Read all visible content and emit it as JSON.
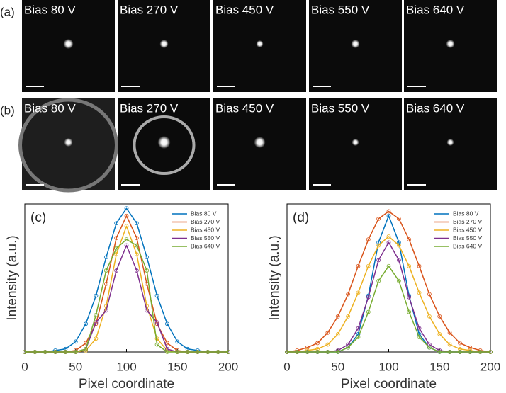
{
  "panels": [
    {
      "label": "(a)",
      "images": [
        "Bias 80 V",
        "Bias 270 V",
        "Bias 450 V",
        "Bias 550 V",
        "Bias 640 V"
      ]
    },
    {
      "label": "(b)",
      "images": [
        "Bias 80 V",
        "Bias 270 V",
        "Bias 450 V",
        "Bias 550 V",
        "Bias 640 V"
      ]
    }
  ],
  "chart_data": [
    {
      "type": "line",
      "panel_label": "(c)",
      "xlabel": "Pixel coordinate",
      "ylabel": "Intensity (a.u.)",
      "x": [
        0,
        10,
        20,
        30,
        40,
        50,
        60,
        70,
        80,
        90,
        100,
        110,
        120,
        130,
        140,
        150,
        160,
        170,
        180,
        190,
        200
      ],
      "xlim": [
        0,
        200
      ],
      "xticks": [
        0,
        50,
        100,
        150,
        200
      ],
      "ylim": [
        0,
        1
      ],
      "legend": "upper right",
      "series": [
        {
          "name": "Bias 80 V",
          "color": "#0072bd",
          "values": [
            0,
            0,
            0,
            0.01,
            0.02,
            0.07,
            0.19,
            0.38,
            0.64,
            0.87,
            0.97,
            0.87,
            0.64,
            0.38,
            0.19,
            0.07,
            0.02,
            0.01,
            0,
            0,
            0
          ]
        },
        {
          "name": "Bias 270 V",
          "color": "#d95319",
          "values": [
            0,
            0,
            0,
            0,
            0,
            0.01,
            0.06,
            0.19,
            0.46,
            0.77,
            0.92,
            0.77,
            0.46,
            0.19,
            0.06,
            0.01,
            0,
            0,
            0,
            0,
            0
          ]
        },
        {
          "name": "Bias 450 V",
          "color": "#edb120",
          "values": [
            0,
            0,
            0,
            0,
            0,
            0,
            0.01,
            0.09,
            0.31,
            0.66,
            0.85,
            0.66,
            0.31,
            0.09,
            0.01,
            0,
            0,
            0,
            0,
            0,
            0
          ]
        },
        {
          "name": "Bias 550 V",
          "color": "#7e2f8e",
          "values": [
            0,
            0,
            0,
            0,
            0,
            0,
            0.02,
            0.2,
            0.28,
            0.55,
            0.72,
            0.55,
            0.28,
            0.2,
            0.02,
            0,
            0,
            0,
            0,
            0,
            0
          ]
        },
        {
          "name": "Bias 640 V",
          "color": "#77ac30",
          "values": [
            0,
            0,
            0,
            0,
            0,
            0,
            0.02,
            0.25,
            0.55,
            0.7,
            0.76,
            0.72,
            0.55,
            0.05,
            0,
            0,
            0,
            0,
            0,
            0,
            0
          ]
        }
      ]
    },
    {
      "type": "line",
      "panel_label": "(d)",
      "xlabel": "Pixel coordinate",
      "ylabel": "Intensity (a.u.)",
      "x": [
        0,
        10,
        20,
        30,
        40,
        50,
        60,
        70,
        80,
        90,
        100,
        110,
        120,
        130,
        140,
        150,
        160,
        170,
        180,
        190,
        200
      ],
      "xlim": [
        0,
        200
      ],
      "xticks": [
        0,
        50,
        100,
        150,
        200
      ],
      "ylim": [
        0,
        1
      ],
      "legend": "upper right",
      "series": [
        {
          "name": "Bias 80 V",
          "color": "#0072bd",
          "values": [
            0,
            0,
            0,
            0,
            0,
            0,
            0.03,
            0.12,
            0.38,
            0.74,
            0.92,
            0.74,
            0.38,
            0.12,
            0.03,
            0,
            0,
            0,
            0,
            0,
            0
          ]
        },
        {
          "name": "Bias 270 V",
          "color": "#d95319",
          "values": [
            0,
            0.01,
            0.03,
            0.06,
            0.13,
            0.24,
            0.39,
            0.58,
            0.76,
            0.9,
            0.95,
            0.9,
            0.76,
            0.58,
            0.39,
            0.24,
            0.13,
            0.06,
            0.03,
            0.01,
            0
          ]
        },
        {
          "name": "Bias 450 V",
          "color": "#edb120",
          "values": [
            0,
            0,
            0.01,
            0.02,
            0.05,
            0.12,
            0.24,
            0.4,
            0.58,
            0.72,
            0.78,
            0.72,
            0.58,
            0.4,
            0.24,
            0.12,
            0.05,
            0.02,
            0.01,
            0,
            0
          ]
        },
        {
          "name": "Bias 550 V",
          "color": "#7e2f8e",
          "values": [
            0,
            0,
            0,
            0,
            0,
            0.01,
            0.05,
            0.16,
            0.37,
            0.62,
            0.74,
            0.62,
            0.37,
            0.16,
            0.05,
            0.01,
            0,
            0,
            0,
            0,
            0
          ]
        },
        {
          "name": "Bias 640 V",
          "color": "#77ac30",
          "values": [
            0,
            0,
            0,
            0,
            0,
            0,
            0.03,
            0.1,
            0.27,
            0.48,
            0.58,
            0.48,
            0.27,
            0.1,
            0.03,
            0,
            0,
            0,
            0,
            0,
            0
          ]
        }
      ]
    }
  ]
}
